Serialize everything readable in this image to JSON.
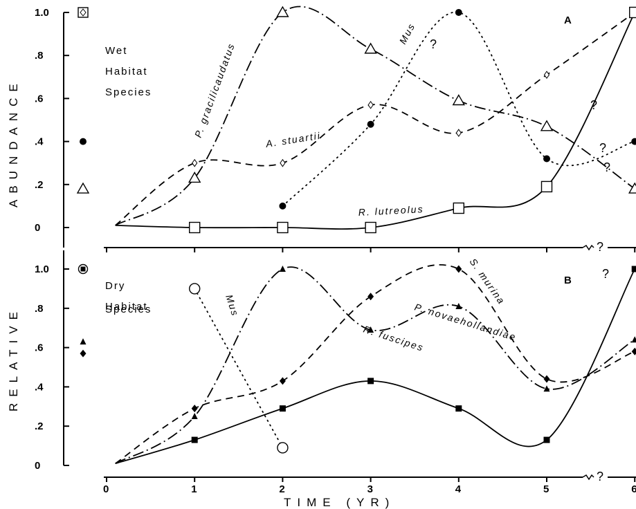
{
  "chart_data": {
    "type": "line",
    "xlabel": "TIME (YR)",
    "ylabel": "RELATIVE ABUNDANCE",
    "xticks": [
      "0",
      "1",
      "2",
      "3",
      "4",
      "5",
      "6"
    ],
    "yticks": [
      "0",
      ".2",
      ".4",
      ".6",
      ".8",
      "1.0"
    ],
    "xlim": [
      0,
      6
    ],
    "ylim": [
      0,
      1.0
    ],
    "question_mark": "?",
    "panels": [
      {
        "label": "A",
        "group_lines": [
          "Wet",
          "Habitat",
          "Species"
        ],
        "pre_fire_points": [
          {
            "shape": "diamond-in-square",
            "y": 1.0
          },
          {
            "shape": "circle-filled",
            "y": 0.4
          },
          {
            "shape": "triangle-open",
            "y": 0.18
          }
        ],
        "series": [
          {
            "name": "P. gracilicaudatus",
            "marker": "triangle-open",
            "style": "dash-dot",
            "x": [
              1,
              2,
              3,
              4,
              5,
              6
            ],
            "y": [
              0.23,
              1.0,
              0.83,
              0.59,
              0.47,
              0.18
            ]
          },
          {
            "name": "Mus",
            "marker": "circle-filled",
            "style": "dotted",
            "x": [
              2,
              3,
              4,
              5,
              6
            ],
            "y": [
              0.1,
              0.48,
              1.0,
              0.32,
              0.4
            ]
          },
          {
            "name": "A. stuartii",
            "marker": "diamond-open",
            "style": "dashed",
            "x": [
              1,
              2,
              3,
              4,
              5,
              6
            ],
            "y": [
              0.3,
              0.3,
              0.57,
              0.44,
              0.71,
              1.0
            ]
          },
          {
            "name": "R. lutreolus",
            "marker": "square-open",
            "style": "solid",
            "x": [
              1,
              2,
              3,
              4,
              5,
              6
            ],
            "y": [
              0.0,
              0.0,
              0.0,
              0.09,
              0.19,
              1.0
            ]
          }
        ]
      },
      {
        "label": "B",
        "group_lines": [
          "Dry",
          "Habitat",
          "Species"
        ],
        "pre_fire_points": [
          {
            "shape": "square-in-circle",
            "y": 1.0
          },
          {
            "shape": "triangle-filled",
            "y": 0.63
          },
          {
            "shape": "diamond-filled",
            "y": 0.57
          }
        ],
        "series": [
          {
            "name": "Mus",
            "marker": "circle-open",
            "style": "dotted",
            "x": [
              1,
              2
            ],
            "y": [
              0.9,
              0.09
            ]
          },
          {
            "name": "P. novaehollandiae",
            "marker": "triangle-filled",
            "style": "dash-dot",
            "x": [
              1,
              2,
              3,
              4,
              5,
              6
            ],
            "y": [
              0.25,
              1.0,
              0.69,
              0.81,
              0.39,
              0.64
            ]
          },
          {
            "name": "S. murina",
            "marker": "diamond-filled",
            "style": "dashed",
            "x": [
              1,
              2,
              3,
              4,
              5,
              6
            ],
            "y": [
              0.29,
              0.43,
              0.86,
              1.0,
              0.44,
              0.58
            ]
          },
          {
            "name": "R. fuscipes",
            "marker": "square-filled",
            "style": "solid",
            "x": [
              1,
              2,
              3,
              4,
              5,
              6
            ],
            "y": [
              0.13,
              0.29,
              0.43,
              0.29,
              0.13,
              1.0
            ]
          }
        ]
      }
    ]
  }
}
